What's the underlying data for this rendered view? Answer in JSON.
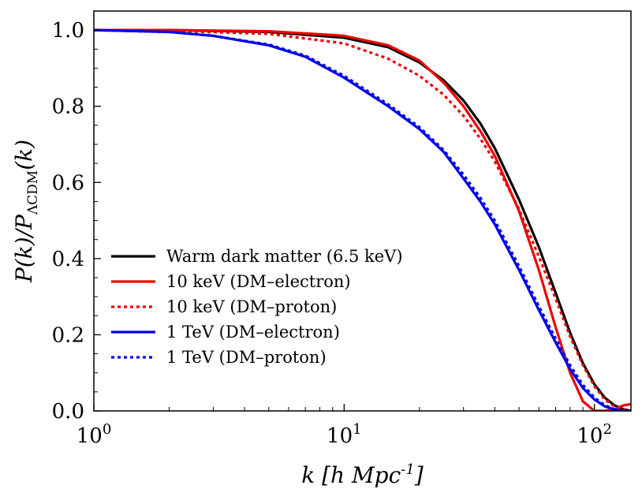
{
  "chart_data": {
    "type": "line",
    "xlabel": "k [h Mpc^-1]",
    "ylabel": "P(k)/P_ΛCDM(k)",
    "xscale": "log",
    "xlim": [
      1,
      140
    ],
    "ylim": [
      0,
      1.05
    ],
    "x_ticks": [
      {
        "value": 1,
        "label": "10^0"
      },
      {
        "value": 10,
        "label": "10^1"
      },
      {
        "value": 100,
        "label": "10^2"
      }
    ],
    "y_ticks": [
      "0.0",
      "0.2",
      "0.4",
      "0.6",
      "0.8",
      "1.0"
    ],
    "grid": false,
    "legend_position": "lower-left",
    "series": [
      {
        "name": "Warm dark matter (6.5 keV)",
        "color": "#000000",
        "style": "solid",
        "x": [
          1,
          2,
          5,
          10,
          15,
          20,
          25,
          30,
          35,
          40,
          50,
          60,
          70,
          80,
          90,
          100,
          110,
          120,
          130,
          140
        ],
        "y": [
          1.0,
          1.0,
          0.995,
          0.98,
          0.955,
          0.915,
          0.868,
          0.815,
          0.755,
          0.69,
          0.555,
          0.43,
          0.31,
          0.205,
          0.125,
          0.07,
          0.035,
          0.015,
          0.005,
          0.0
        ]
      },
      {
        "name": "10 keV (DM–electron)",
        "color": "#ee0000",
        "style": "solid",
        "x": [
          1,
          2,
          5,
          10,
          15,
          20,
          25,
          30,
          35,
          40,
          50,
          60,
          70,
          80,
          90,
          100,
          110,
          120,
          130,
          140
        ],
        "y": [
          1.0,
          1.0,
          0.997,
          0.985,
          0.96,
          0.92,
          0.862,
          0.8,
          0.735,
          0.67,
          0.525,
          0.37,
          0.22,
          0.1,
          0.025,
          0.0,
          0.0,
          0.004,
          0.014,
          0.018
        ]
      },
      {
        "name": "10 keV (DM–proton)",
        "color": "#ee0000",
        "style": "dotted",
        "x": [
          1,
          2,
          5,
          10,
          15,
          20,
          25,
          30,
          35,
          40,
          50,
          60,
          70,
          80,
          90,
          100,
          110,
          120,
          130,
          140
        ],
        "y": [
          1.0,
          0.998,
          0.99,
          0.965,
          0.925,
          0.88,
          0.83,
          0.775,
          0.715,
          0.655,
          0.53,
          0.405,
          0.295,
          0.195,
          0.12,
          0.065,
          0.03,
          0.012,
          0.004,
          0.0
        ]
      },
      {
        "name": "1 TeV (DM–electron)",
        "color": "#0000ee",
        "style": "solid",
        "x": [
          1,
          2,
          3,
          5,
          7,
          10,
          15,
          20,
          25,
          30,
          35,
          40,
          50,
          60,
          70,
          80,
          90,
          100,
          110,
          120,
          130,
          140
        ],
        "y": [
          1.0,
          0.995,
          0.985,
          0.96,
          0.93,
          0.875,
          0.8,
          0.74,
          0.68,
          0.61,
          0.55,
          0.49,
          0.37,
          0.265,
          0.18,
          0.11,
          0.06,
          0.03,
          0.012,
          0.004,
          0.0,
          0.0
        ]
      },
      {
        "name": "1 TeV (DM–proton)",
        "color": "#0000ee",
        "style": "dotted",
        "x": [
          1,
          2,
          3,
          5,
          7,
          10,
          15,
          20,
          25,
          30,
          35,
          40,
          50,
          60,
          70,
          80,
          90,
          100,
          110,
          120,
          130,
          140
        ],
        "y": [
          1.0,
          0.995,
          0.985,
          0.962,
          0.933,
          0.88,
          0.805,
          0.745,
          0.685,
          0.62,
          0.56,
          0.5,
          0.38,
          0.275,
          0.19,
          0.12,
          0.068,
          0.035,
          0.015,
          0.005,
          0.0,
          0.0
        ]
      }
    ]
  }
}
